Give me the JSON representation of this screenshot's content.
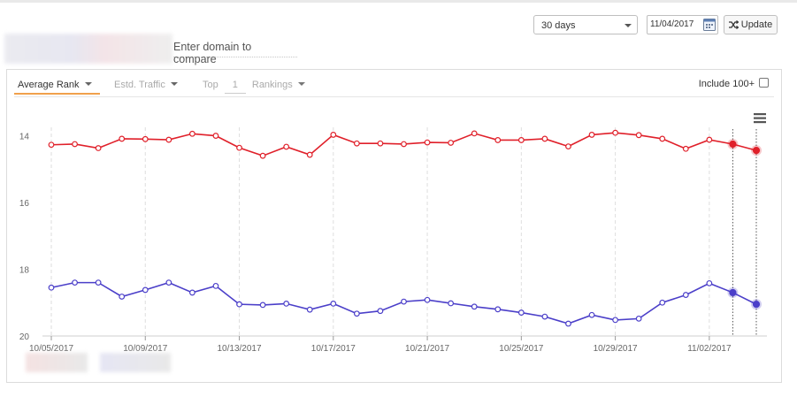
{
  "header": {
    "range_select": "30 days",
    "date_value": "11/04/2017",
    "update_label": "Update",
    "compare_placeholder": "Enter domain to compare"
  },
  "panel": {
    "tabs": [
      {
        "label": "Average Rank",
        "active": true
      },
      {
        "label": "Estd. Traffic",
        "active": false
      }
    ],
    "top_prefix": "Top",
    "top_value": "1",
    "top_suffix": "Rankings",
    "include_label": "Include 100+",
    "include_checked": false,
    "menu_icon": "hamburger-menu-icon"
  },
  "chart_data": {
    "type": "line",
    "x": [
      "10/05/2017",
      "10/06/2017",
      "10/07/2017",
      "10/08/2017",
      "10/09/2017",
      "10/10/2017",
      "10/11/2017",
      "10/12/2017",
      "10/13/2017",
      "10/14/2017",
      "10/15/2017",
      "10/16/2017",
      "10/17/2017",
      "10/18/2017",
      "10/19/2017",
      "10/20/2017",
      "10/21/2017",
      "10/22/2017",
      "10/23/2017",
      "10/24/2017",
      "10/25/2017",
      "10/26/2017",
      "10/27/2017",
      "10/28/2017",
      "10/29/2017",
      "10/30/2017",
      "10/31/2017",
      "11/01/2017",
      "11/02/2017",
      "11/03/2017",
      "11/04/2017"
    ],
    "x_tick_labels": [
      "10/05/2017",
      "10/09/2017",
      "10/13/2017",
      "10/17/2017",
      "10/21/2017",
      "10/25/2017",
      "10/29/2017",
      "11/02/2017"
    ],
    "y_ticks": [
      14,
      16,
      18,
      20
    ],
    "ylim": [
      13.8,
      20
    ],
    "y_reversed": true,
    "grid": "vertical-dashed",
    "series": [
      {
        "color": "#e0202a",
        "values": [
          14.27,
          14.25,
          14.37,
          14.09,
          14.1,
          14.12,
          13.94,
          14.0,
          14.36,
          14.6,
          14.33,
          14.57,
          13.97,
          14.23,
          14.23,
          14.25,
          14.2,
          14.21,
          13.93,
          14.13,
          14.13,
          14.09,
          14.32,
          13.97,
          13.91,
          13.98,
          14.09,
          14.39,
          14.12,
          14.25,
          14.44
        ]
      },
      {
        "color": "#4b3fc9",
        "values": [
          18.55,
          18.4,
          18.4,
          18.82,
          18.62,
          18.4,
          18.7,
          18.5,
          19.05,
          19.07,
          19.03,
          19.21,
          19.03,
          19.33,
          19.25,
          18.97,
          18.92,
          19.02,
          19.12,
          19.2,
          19.3,
          19.42,
          19.63,
          19.37,
          19.52,
          19.48,
          19.0,
          18.77,
          18.42,
          18.7,
          19.05
        ]
      }
    ]
  }
}
